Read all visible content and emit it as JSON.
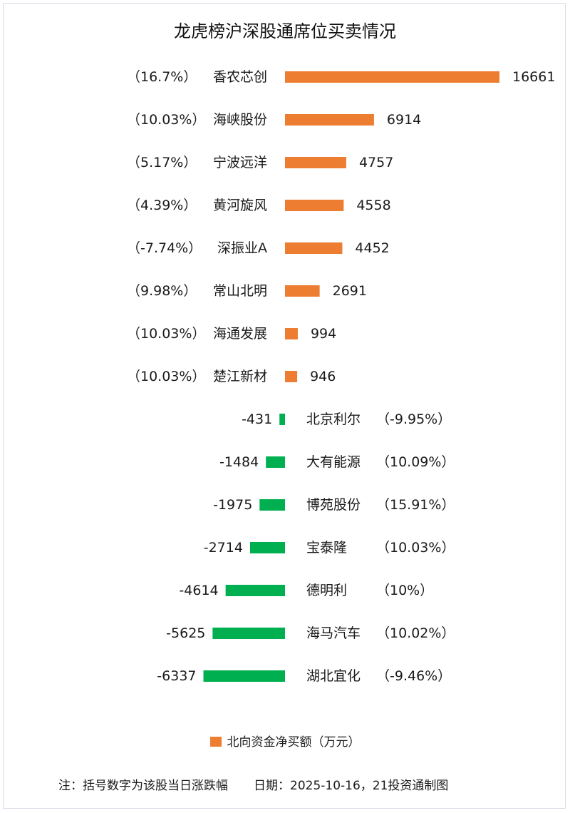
{
  "chart_data": {
    "type": "bar",
    "orientation": "horizontal-diverging",
    "title": "龙虎榜沪深股通席位买卖情况",
    "series": [
      {
        "name": "北向资金净买额（万元）",
        "color": "#ed7d31"
      }
    ],
    "negative_color": "#00b050",
    "items": [
      {
        "name": "香农芯创",
        "value": 16661,
        "change": "16.7%"
      },
      {
        "name": "海峡股份",
        "value": 6914,
        "change": "10.03%"
      },
      {
        "name": "宁波远洋",
        "value": 4757,
        "change": "5.17%"
      },
      {
        "name": "黄河旋风",
        "value": 4558,
        "change": "4.39%"
      },
      {
        "name": "深振业A",
        "value": 4452,
        "change": "-7.74%"
      },
      {
        "name": "常山北明",
        "value": 2691,
        "change": "9.98%"
      },
      {
        "name": "海通发展",
        "value": 994,
        "change": "10.03%"
      },
      {
        "name": "楚江新材",
        "value": 946,
        "change": "10.03%"
      },
      {
        "name": "北京利尔",
        "value": -431,
        "change": "-9.95%"
      },
      {
        "name": "大有能源",
        "value": -1484,
        "change": "10.09%"
      },
      {
        "name": "博苑股份",
        "value": -1975,
        "change": "15.91%"
      },
      {
        "name": "宝泰隆",
        "value": -2714,
        "change": "10.03%"
      },
      {
        "name": "德明利",
        "value": -4614,
        "change": "10%"
      },
      {
        "name": "海马汽车",
        "value": -5625,
        "change": "10.02%"
      },
      {
        "name": "湖北宜化",
        "value": -6337,
        "change": "-9.46%"
      }
    ],
    "legend": "bottom-center",
    "grid": false
  },
  "footer": {
    "note": "注：括号数字为该股当日涨跌幅",
    "date": "日期：2025-10-16，21投资通制图"
  }
}
